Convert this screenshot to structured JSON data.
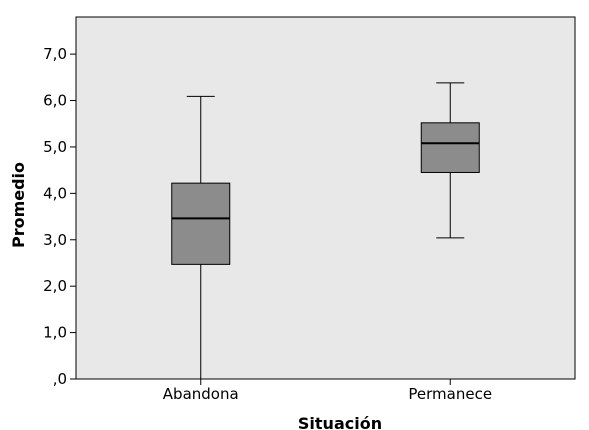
{
  "chart_data": {
    "type": "boxplot",
    "title": "",
    "xlabel": "Situación",
    "ylabel": "Promedio",
    "ylim": [
      0,
      7.8
    ],
    "yticks": [
      0,
      1,
      2,
      3,
      4,
      5,
      6,
      7
    ],
    "ytick_labels": [
      ",0",
      "1,0",
      "2,0",
      "3,0",
      "4,0",
      "5,0",
      "6,0",
      "7,0"
    ],
    "grid": false,
    "legend": "none",
    "colors": {
      "plot_bg": "#e8e8e8",
      "box_fill": "#8c8c8c",
      "line": "#000000"
    },
    "series": [
      {
        "category": "Abandona",
        "min": 0.0,
        "q1": 2.47,
        "median": 3.46,
        "q3": 4.22,
        "max": 6.09
      },
      {
        "category": "Permanece",
        "min": 3.04,
        "q1": 4.45,
        "median": 5.08,
        "q3": 5.52,
        "max": 6.38
      }
    ]
  }
}
